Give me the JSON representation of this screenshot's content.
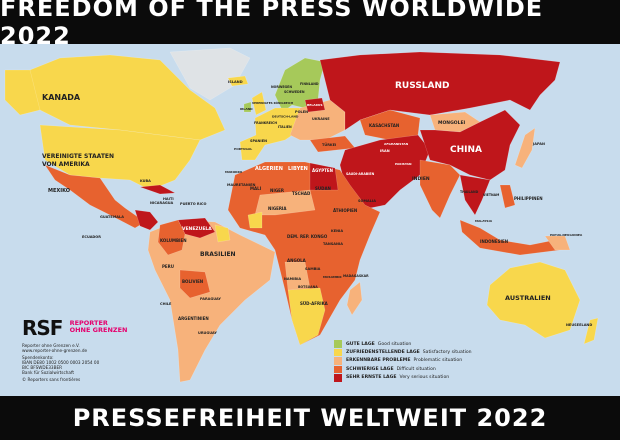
{
  "header": {
    "title": "FREEDOM OF THE PRESS WORLDWIDE 2022"
  },
  "footer": {
    "title": "PRESSEFREIHEIT WELTWEIT 2022"
  },
  "colors": {
    "ocean": "#c8dced",
    "good": "#a6c95a",
    "satisfactory": "#f8d74c",
    "problematic": "#f7b27b",
    "difficult": "#e7622f",
    "very_serious": "#bf161b",
    "none": "#dfe3e6"
  },
  "legend": [
    {
      "de": "GUTE LAGE",
      "en": "Good situation",
      "key": "good"
    },
    {
      "de": "ZUFRIEDENSTELLENDE LAGE",
      "en": "Satisfactory situation",
      "key": "satisfactory"
    },
    {
      "de": "ERKENNBARE PROBLEME",
      "en": "Problematic situation",
      "key": "problematic"
    },
    {
      "de": "SCHWIERIGE LAGE",
      "en": "Difficult situation",
      "key": "difficult"
    },
    {
      "de": "SEHR ERNSTE LAGE",
      "en": "Very serious situation",
      "key": "very_serious"
    }
  ],
  "logo": {
    "mark": "RSF",
    "name_line1": "REPORTER",
    "name_line2": "OHNE GRENZEN",
    "lines": [
      "Reporter ohne Grenzen e.V.",
      "www.reporter-ohne-grenzen.de",
      "Spendenkonto:",
      "IBAN DE80 1002 0500 0003 2054 00",
      "BIC BFSWDE33BER",
      "Bank für Sozialwirtschaft",
      "© Reporters sans frontières"
    ]
  },
  "labels": {
    "kanada": "KANADA",
    "usa1": "VEREINIGTE STAATEN",
    "usa2": "VON AMERIKA",
    "mexiko": "MEXIKO",
    "kuba": "KUBA",
    "venezuela": "VENEZUELA",
    "kolumbien": "KOLUMBIEN",
    "ecuador": "ECUADOR",
    "peru": "PERU",
    "brasilien": "BRASILIEN",
    "bolivien": "BOLIVIEN",
    "paraguay": "PARAGUAY",
    "chile": "CHILE",
    "argentinien": "ARGENTINIEN",
    "uruguay": "URUGUAY",
    "guatemala": "GUATEMALA",
    "nicaragua": "NICARAGUA",
    "haiti": "HAITI",
    "puerto_rico": "PUERTO RICO",
    "island": "ISLAND",
    "norwegen": "NORWEGEN",
    "schweden": "SCHWEDEN",
    "finnland": "FINNLAND",
    "grossbritannien": "VEREINIGTES KÖNIGREICH",
    "irland": "IRLAND",
    "frankreich": "FRANKREICH",
    "deutschland": "DEUTSCH-LAND",
    "spanien": "SPANIEN",
    "portugal": "PORTUGAL",
    "polen": "POLEN",
    "ukraine": "UKRAINE",
    "belarus": "BELARUS",
    "italien": "ITALIEN",
    "tuerkei": "TÜRKEI",
    "russland": "RUSSLAND",
    "kasachstan": "KASACHSTAN",
    "mongolei": "MONGOLEI",
    "china": "CHINA",
    "indien": "INDIEN",
    "japan": "JAPAN",
    "iran": "IRAN",
    "saudi": "SAUDI-ARABIEN",
    "aegypten": "ÄGYPTEN",
    "afghanistan": "AFGHANISTAN",
    "pakistan": "PAKISTAN",
    "thailand": "THAILAND",
    "vietnam": "VIETNAM",
    "philippinen": "PHILIPPINEN",
    "indonesien": "INDONESIEN",
    "malaysia": "MALAYSIA",
    "papua": "PAPUA-NEUGUINEA",
    "australien": "AUSTRALIEN",
    "neuseeland": "NEUSEELAND",
    "algerien": "ALGERIEN",
    "libyen": "LIBYEN",
    "marokko": "MAROKKO",
    "mauretanien": "MAURETANIEN",
    "mali": "MALI",
    "niger": "NIGER",
    "tschad": "TSCHAD",
    "sudan": "SUDAN",
    "nigeria": "NIGERIA",
    "aethiopien": "ÄTHIOPIEN",
    "somalia": "SOMALIA",
    "kongo": "DEM. REP. KONGO",
    "kenia": "KENIA",
    "tansania": "TANSANIA",
    "angola": "ANGOLA",
    "sambia": "SAMBIA",
    "namibia": "NAMIBIA",
    "botsuana": "BOTSUANA",
    "suedafrika": "SÜD-AFRIKA",
    "madagaskar": "MADAGASKAR",
    "mosambik": "MOSAMBIK"
  }
}
